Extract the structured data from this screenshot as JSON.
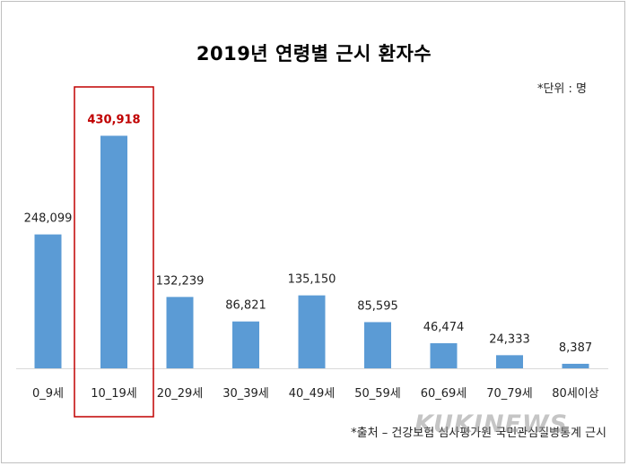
{
  "chart_data": {
    "type": "bar",
    "title": "2019년 연령별 근시 환자수",
    "unit_note": "*단위 : 명",
    "categories": [
      "0_9세",
      "10_19세",
      "20_29세",
      "30_39세",
      "40_49세",
      "50_59세",
      "60_69세",
      "70_79세",
      "80세이상"
    ],
    "values": [
      248099,
      430918,
      132239,
      86821,
      135150,
      85595,
      46474,
      24333,
      8387
    ],
    "value_labels": [
      "248,099",
      "430,918",
      "132,239",
      "86,821",
      "135,150",
      "85,595",
      "46,474",
      "24,333",
      "8,387"
    ],
    "highlight_index": 1,
    "bar_color": "#5b9bd5",
    "highlight_label_color": "#c00000",
    "highlight_box_color": "#c00000",
    "ylim": [
      0,
      450000
    ],
    "grid": false,
    "source": "*출처 – 건강보험 심사평가원 국민관심질병통계 근시"
  },
  "watermark": "KUKINEWS"
}
